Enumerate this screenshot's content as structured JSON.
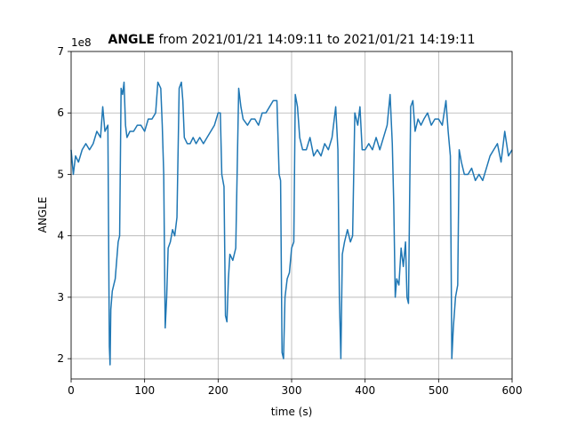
{
  "chart_data": {
    "type": "line",
    "title": {
      "bold": "ANGLE",
      "text": "from 2021/01/21 14:09:11 to 2021/01/21 14:19:11"
    },
    "x_label": "time (s)",
    "y_label": "ANGLE",
    "y_offset_label": "1e8",
    "xlim": [
      0,
      600
    ],
    "xticks": [
      0,
      100,
      200,
      300,
      400,
      500,
      600
    ],
    "ylim": [
      1.67,
      7
    ],
    "yticks": [
      2,
      3,
      4,
      5,
      6,
      7
    ],
    "grid": true,
    "color": "#1f77b4",
    "x": [
      0,
      3,
      6,
      10,
      15,
      20,
      25,
      30,
      35,
      40,
      43,
      46,
      50,
      52,
      53,
      54,
      56,
      58,
      60,
      62,
      64,
      66,
      68,
      70,
      72,
      74,
      76,
      80,
      85,
      90,
      95,
      100,
      105,
      110,
      115,
      118,
      122,
      124,
      126,
      128,
      130,
      132,
      135,
      138,
      141,
      144,
      147,
      150,
      152,
      154,
      158,
      162,
      166,
      170,
      175,
      180,
      185,
      190,
      195,
      200,
      203,
      205,
      208,
      210,
      212,
      214,
      216,
      220,
      224,
      228,
      231,
      234,
      240,
      245,
      250,
      255,
      260,
      265,
      270,
      275,
      280,
      283,
      285,
      287,
      289,
      291,
      294,
      297,
      300,
      303,
      305,
      308,
      311,
      315,
      320,
      325,
      330,
      335,
      340,
      345,
      350,
      355,
      360,
      363,
      365,
      367,
      369,
      372,
      376,
      380,
      383,
      386,
      390,
      393,
      396,
      400,
      405,
      410,
      415,
      420,
      425,
      430,
      434,
      437,
      439,
      441,
      443,
      446,
      449,
      452,
      455,
      457,
      459,
      462,
      465,
      468,
      472,
      476,
      480,
      485,
      490,
      495,
      500,
      505,
      510,
      513,
      516,
      518,
      520,
      523,
      526,
      528,
      531,
      535,
      540,
      545,
      550,
      555,
      560,
      565,
      570,
      575,
      580,
      585,
      590,
      595,
      600
    ],
    "values": [
      5.4,
      5.0,
      5.3,
      5.2,
      5.4,
      5.5,
      5.4,
      5.5,
      5.7,
      5.6,
      6.1,
      5.7,
      5.8,
      2.2,
      1.9,
      2.8,
      3.1,
      3.2,
      3.3,
      3.6,
      3.9,
      4.0,
      6.4,
      6.3,
      6.5,
      5.8,
      5.6,
      5.7,
      5.7,
      5.8,
      5.8,
      5.7,
      5.9,
      5.9,
      6.0,
      6.5,
      6.4,
      5.8,
      5.0,
      2.5,
      3.0,
      3.8,
      3.9,
      4.1,
      4.0,
      4.3,
      6.4,
      6.5,
      6.2,
      5.6,
      5.5,
      5.5,
      5.6,
      5.5,
      5.6,
      5.5,
      5.6,
      5.7,
      5.8,
      6.0,
      6.0,
      5.0,
      4.8,
      2.7,
      2.6,
      3.3,
      3.7,
      3.6,
      3.8,
      6.4,
      6.1,
      5.9,
      5.8,
      5.9,
      5.9,
      5.8,
      6.0,
      6.0,
      6.1,
      6.2,
      6.2,
      5.0,
      4.9,
      2.1,
      2.0,
      3.0,
      3.3,
      3.4,
      3.8,
      3.9,
      6.3,
      6.1,
      5.6,
      5.4,
      5.4,
      5.6,
      5.3,
      5.4,
      5.3,
      5.5,
      5.4,
      5.6,
      6.1,
      5.4,
      3.0,
      2.0,
      3.7,
      3.9,
      4.1,
      3.9,
      4.0,
      6.0,
      5.8,
      6.1,
      5.4,
      5.4,
      5.5,
      5.4,
      5.6,
      5.4,
      5.6,
      5.8,
      6.3,
      5.5,
      4.5,
      3.0,
      3.3,
      3.2,
      3.8,
      3.5,
      3.9,
      3.0,
      2.9,
      6.1,
      6.2,
      5.7,
      5.9,
      5.8,
      5.9,
      6.0,
      5.8,
      5.9,
      5.9,
      5.8,
      6.2,
      5.7,
      5.3,
      2.0,
      2.5,
      3.0,
      3.2,
      5.4,
      5.2,
      5.0,
      5.0,
      5.1,
      4.9,
      5.0,
      4.9,
      5.1,
      5.3,
      5.4,
      5.5,
      5.2,
      5.7,
      5.3,
      5.4
    ]
  }
}
